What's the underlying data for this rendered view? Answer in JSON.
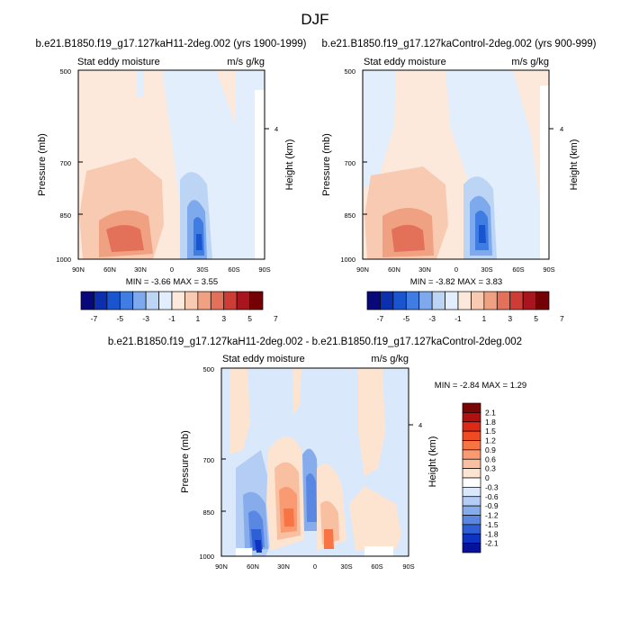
{
  "title": "DJF",
  "colorscales": {
    "top": {
      "labels": [
        "-7",
        "-5",
        "-3",
        "-1",
        "1",
        "3",
        "5",
        "7"
      ],
      "colors": [
        "#08087a",
        "#0c2fae",
        "#1a55d0",
        "#3f7de3",
        "#7ea9ec",
        "#bcd5f5",
        "#e2eefb",
        "#fde9dc",
        "#f8cab1",
        "#f0a182",
        "#e3715a",
        "#cd3c35",
        "#a8151f",
        "#740005"
      ]
    },
    "bottom": {
      "labels": [
        "2.1",
        "1.8",
        "1.5",
        "1.2",
        "0.9",
        "0.6",
        "0.3",
        "0",
        "-0.3",
        "-0.6",
        "-0.9",
        "-1.2",
        "-1.5",
        "-1.8",
        "-2.1"
      ],
      "colors": [
        "#7a0505",
        "#b01010",
        "#dd2a16",
        "#f04a23",
        "#f77445",
        "#f99a72",
        "#f8bfa0",
        "#fde4d1",
        "#ffffff",
        "#d9e8fb",
        "#b3cdf4",
        "#86acec",
        "#5a87e2",
        "#2f5fd6",
        "#0c33c2",
        "#07129a"
      ]
    }
  },
  "panels": [
    {
      "title": "b.e21.B1850.f19_g17.127kaH11-2deg.002 (yrs 1900-1999)",
      "left_label": "Stat eddy moisture",
      "right_label": "m/s g/kg",
      "ylabel": "Pressure (mb)",
      "ylabel_right": "Height (km)",
      "right_tick": "4",
      "y_ticks": [
        "500",
        "700",
        "850",
        "1000"
      ],
      "x_ticks": [
        "90N",
        "60N",
        "30N",
        "0",
        "30S",
        "60S",
        "90S"
      ],
      "stats": "MIN = -3.66 MAX = 3.55"
    },
    {
      "title": "b.e21.B1850.f19_g17.127kaControl-2deg.002 (yrs 900-999)",
      "left_label": "Stat eddy moisture",
      "right_label": "m/s g/kg",
      "ylabel": "Pressure (mb)",
      "ylabel_right": "Height (km)",
      "right_tick": "4",
      "y_ticks": [
        "500",
        "700",
        "850",
        "1000"
      ],
      "x_ticks": [
        "90N",
        "60N",
        "30N",
        "0",
        "30S",
        "60S",
        "90S"
      ],
      "stats": "MIN = -3.82 MAX = 3.83"
    },
    {
      "title": "b.e21.B1850.f19_g17.127kaH11-2deg.002 - b.e21.B1850.f19_g17.127kaControl-2deg.002",
      "left_label": "Stat eddy moisture",
      "right_label": "m/s g/kg",
      "ylabel": "Pressure (mb)",
      "ylabel_right": "Height (km)",
      "right_tick": "4",
      "y_ticks": [
        "500",
        "700",
        "850",
        "1000"
      ],
      "x_ticks": [
        "90N",
        "60N",
        "30N",
        "0",
        "30S",
        "60S",
        "90S"
      ],
      "stats": "MIN = -2.84 MAX = 1.29"
    }
  ],
  "chart_data": [
    {
      "type": "heatmap",
      "title": "b.e21.B1850.f19_g17.127kaH11-2deg.002 (yrs 1900-1999)",
      "quantity": "Stat eddy moisture",
      "units": "m/s g/kg",
      "ylabel": "Pressure (mb)",
      "ylabel_right": "Height (km)",
      "x_ticks": [
        "90N",
        "60N",
        "30N",
        "0",
        "30S",
        "60S",
        "90S"
      ],
      "y_ticks": [
        500,
        700,
        850,
        1000
      ],
      "y_scale": "log-pressure",
      "min": -3.66,
      "max": 3.55,
      "contour_levels": [
        -7,
        -6,
        -5,
        -4,
        -3,
        -2,
        -1,
        0,
        1,
        2,
        3,
        4,
        5,
        6,
        7
      ]
    },
    {
      "type": "heatmap",
      "title": "b.e21.B1850.f19_g17.127kaControl-2deg.002 (yrs 900-999)",
      "quantity": "Stat eddy moisture",
      "units": "m/s g/kg",
      "ylabel": "Pressure (mb)",
      "ylabel_right": "Height (km)",
      "x_ticks": [
        "90N",
        "60N",
        "30N",
        "0",
        "30S",
        "60S",
        "90S"
      ],
      "y_ticks": [
        500,
        700,
        850,
        1000
      ],
      "y_scale": "log-pressure",
      "min": -3.82,
      "max": 3.83,
      "contour_levels": [
        -7,
        -6,
        -5,
        -4,
        -3,
        -2,
        -1,
        0,
        1,
        2,
        3,
        4,
        5,
        6,
        7
      ]
    },
    {
      "type": "heatmap",
      "title": "b.e21.B1850.f19_g17.127kaH11-2deg.002 - b.e21.B1850.f19_g17.127kaControl-2deg.002",
      "quantity": "Stat eddy moisture",
      "units": "m/s g/kg",
      "ylabel": "Pressure (mb)",
      "ylabel_right": "Height (km)",
      "x_ticks": [
        "90N",
        "60N",
        "30N",
        "0",
        "30S",
        "60S",
        "90S"
      ],
      "y_ticks": [
        500,
        700,
        850,
        1000
      ],
      "y_scale": "log-pressure",
      "min": -2.84,
      "max": 1.29,
      "contour_levels": [
        -2.1,
        -1.8,
        -1.5,
        -1.2,
        -0.9,
        -0.6,
        -0.3,
        0,
        0.3,
        0.6,
        0.9,
        1.2,
        1.5,
        1.8,
        2.1
      ]
    }
  ]
}
